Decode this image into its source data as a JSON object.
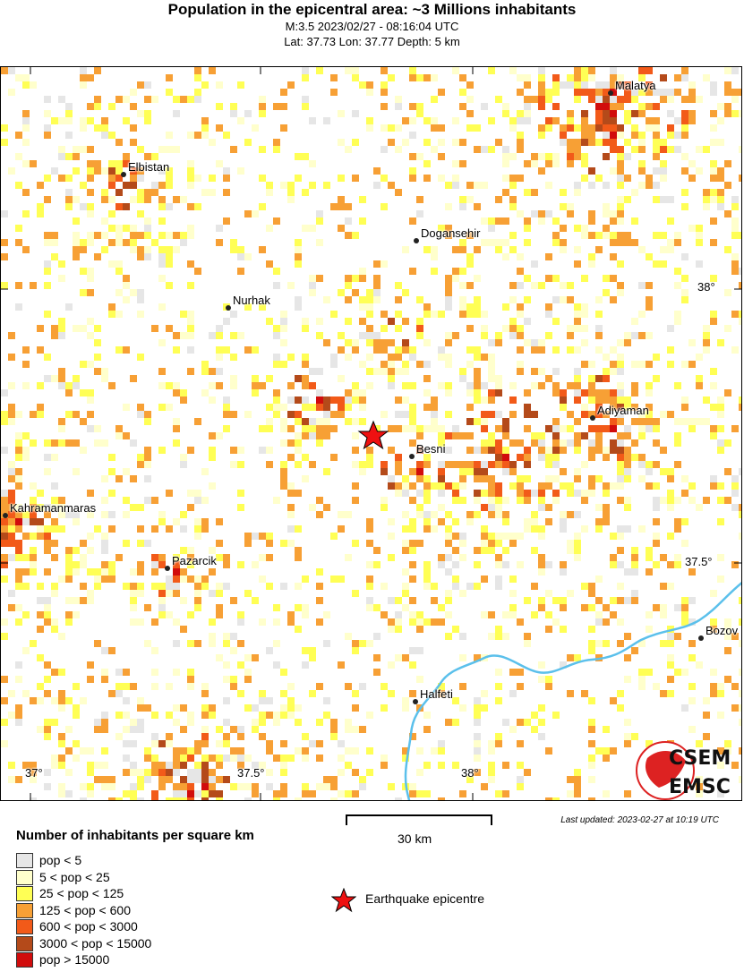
{
  "header": {
    "title": "Population in the epicentral area: ~3 Millions inhabitants",
    "line1": "M:3.5 2023/02/27 - 08:16:04 UTC",
    "line2": "Lat: 37.73 Lon: 37.77 Depth: 5 km"
  },
  "map": {
    "cities": [
      {
        "name": "Malatya"
      },
      {
        "name": "Elbistan"
      },
      {
        "name": "Dogansehir"
      },
      {
        "name": "Nurhak"
      },
      {
        "name": "Adiyaman"
      },
      {
        "name": "Besni"
      },
      {
        "name": "Kahramanmaras"
      },
      {
        "name": "Pazarcik"
      },
      {
        "name": "Halfeti"
      },
      {
        "name": "Bozov"
      }
    ],
    "lat_labels": [
      "38°",
      "37.5°"
    ],
    "lon_labels": [
      "37°",
      "37.5°",
      "38°"
    ],
    "river_color": "#5bc0eb",
    "epicentre_color": "#ee1111",
    "logo": "CSEM EMSC"
  },
  "scale": {
    "label": "30 km"
  },
  "updated": "Last updated: 2023-02-27 at 10:19 UTC",
  "legend": {
    "title": "Number of inhabitants per square km",
    "items": [
      {
        "label": "pop < 5",
        "color": "#e6e6e6"
      },
      {
        "label": "5 < pop < 25",
        "color": "#ffffcc"
      },
      {
        "label": "25 < pop < 125",
        "color": "#ffff55"
      },
      {
        "label": "125 < pop < 600",
        "color": "#f7a035"
      },
      {
        "label": "600 < pop < 3000",
        "color": "#f25a19"
      },
      {
        "label": "3000 < pop < 15000",
        "color": "#b44a1a"
      },
      {
        "label": "pop > 15000",
        "color": "#d10c0c"
      }
    ],
    "epicentre": "Earthquake epicentre"
  }
}
